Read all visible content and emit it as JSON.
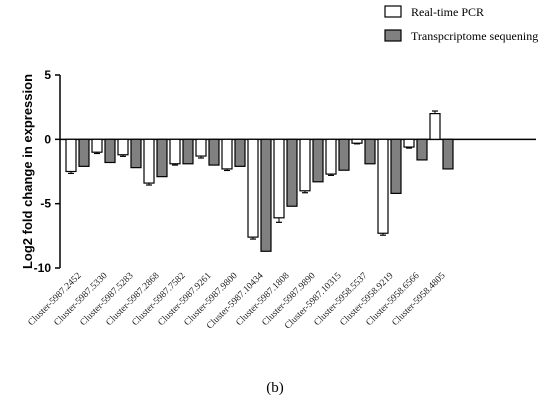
{
  "chart_data": {
    "type": "bar",
    "categories": [
      "Cluster-5987.2452",
      "Cluster-5987.5330",
      "Cluster-5987.5283",
      "Cluster-5987.2868",
      "Cluster-5987.7582",
      "Cluster-5987.9261",
      "Cluster-5987.9800",
      "Cluster-5987.10434",
      "Cluster-5987.1808",
      "Cluster-5987.9890",
      "Cluster-5987.10315",
      "Cluster-5958.5537",
      "Cluster-5958.9219",
      "Cluster-5958.6566",
      "Cluster-5958.4805"
    ],
    "series": [
      {
        "name": "Real-time PCR",
        "color": "#ffffff",
        "values": [
          -2.5,
          -1.0,
          -1.2,
          -3.4,
          -1.9,
          -1.3,
          -2.3,
          -7.6,
          -6.1,
          -4.0,
          -2.7,
          -0.3,
          -7.3,
          -0.6,
          2.0
        ],
        "errors": [
          0.15,
          0.1,
          0.12,
          0.15,
          0.1,
          0.15,
          0.12,
          0.15,
          0.35,
          0.15,
          0.1,
          0.05,
          0.15,
          0.08,
          0.2
        ]
      },
      {
        "name": "Transpcriptome sequening",
        "color": "#808080",
        "values": [
          -2.1,
          -1.8,
          -2.2,
          -2.9,
          -1.9,
          -2.0,
          -2.1,
          -8.7,
          -5.2,
          -3.3,
          -2.4,
          -1.9,
          -4.2,
          -1.6,
          -2.3
        ]
      }
    ],
    "xlabel": "",
    "ylabel": "Log2 fold change in expression",
    "ylim": [
      -10,
      5
    ],
    "yticks": [
      -10,
      -5,
      0,
      5
    ],
    "grid": false,
    "legend_position": "top-right",
    "panel_label": "(b)"
  }
}
